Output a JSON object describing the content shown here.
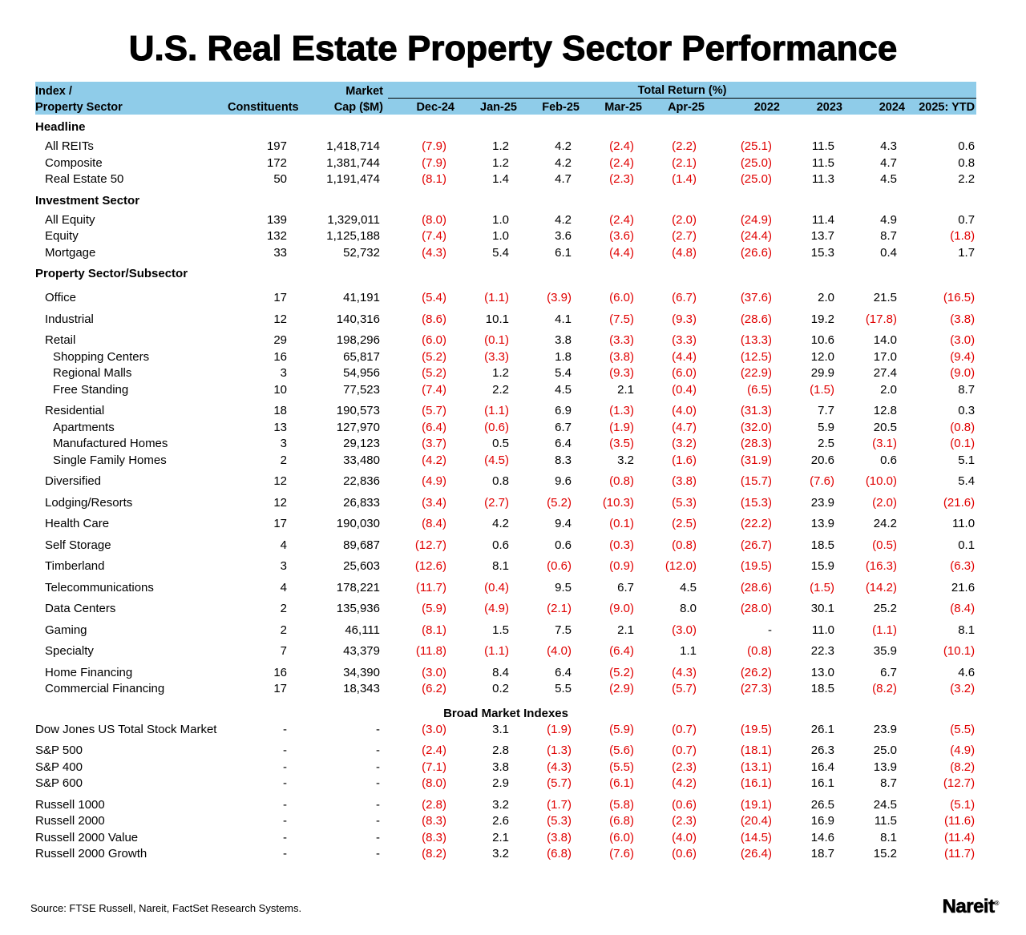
{
  "title": "U.S. Real Estate Property Sector Performance",
  "accent_color": "#8fcce9",
  "negative_color": "#e00000",
  "header": {
    "col1_line1": "Index /",
    "col1_line2": "Property Sector",
    "constituents": "Constituents",
    "mcap_line1": "Market",
    "mcap_line2": "Cap ($M)",
    "total_return": "Total Return (%)",
    "periods": [
      "Dec-24",
      "Jan-25",
      "Feb-25",
      "Mar-25",
      "Apr-25",
      "2022",
      "2023",
      "2024",
      "2025: YTD"
    ]
  },
  "sections": [
    {
      "label": "Headline",
      "rows": [
        {
          "name": "All REITs",
          "level": 1,
          "constituents": "197",
          "mcap": "1,418,714",
          "values": [
            "(7.9)",
            "1.2",
            "4.2",
            "(2.4)",
            "(2.2)",
            "(25.1)",
            "11.5",
            "4.3",
            "0.6"
          ]
        },
        {
          "name": "Composite",
          "level": 1,
          "constituents": "172",
          "mcap": "1,381,744",
          "values": [
            "(7.9)",
            "1.2",
            "4.2",
            "(2.4)",
            "(2.1)",
            "(25.0)",
            "11.5",
            "4.7",
            "0.8"
          ]
        },
        {
          "name": "Real Estate 50",
          "level": 1,
          "constituents": "50",
          "mcap": "1,191,474",
          "values": [
            "(8.1)",
            "1.4",
            "4.7",
            "(2.3)",
            "(1.4)",
            "(25.0)",
            "11.3",
            "4.5",
            "2.2"
          ]
        }
      ]
    },
    {
      "label": "Investment Sector",
      "rows": [
        {
          "name": "All Equity",
          "level": 1,
          "constituents": "139",
          "mcap": "1,329,011",
          "values": [
            "(8.0)",
            "1.0",
            "4.2",
            "(2.4)",
            "(2.0)",
            "(24.9)",
            "11.4",
            "4.9",
            "0.7"
          ]
        },
        {
          "name": "Equity",
          "level": 1,
          "constituents": "132",
          "mcap": "1,125,188",
          "values": [
            "(7.4)",
            "1.0",
            "3.6",
            "(3.6)",
            "(2.7)",
            "(24.4)",
            "13.7",
            "8.7",
            "(1.8)"
          ]
        },
        {
          "name": "Mortgage",
          "level": 1,
          "constituents": "33",
          "mcap": "52,732",
          "values": [
            "(4.3)",
            "5.4",
            "6.1",
            "(4.4)",
            "(4.8)",
            "(26.6)",
            "15.3",
            "0.4",
            "1.7"
          ]
        }
      ]
    },
    {
      "label": "Property Sector/Subsector",
      "rows": [
        {
          "name": "Office",
          "level": 1,
          "gap": true,
          "constituents": "17",
          "mcap": "41,191",
          "values": [
            "(5.4)",
            "(1.1)",
            "(3.9)",
            "(6.0)",
            "(6.7)",
            "(37.6)",
            "2.0",
            "21.5",
            "(16.5)"
          ]
        },
        {
          "name": "Industrial",
          "level": 1,
          "gap": true,
          "constituents": "12",
          "mcap": "140,316",
          "values": [
            "(8.6)",
            "10.1",
            "4.1",
            "(7.5)",
            "(9.3)",
            "(28.6)",
            "19.2",
            "(17.8)",
            "(3.8)"
          ]
        },
        {
          "name": "Retail",
          "level": 1,
          "gap": true,
          "constituents": "29",
          "mcap": "198,296",
          "values": [
            "(6.0)",
            "(0.1)",
            "3.8",
            "(3.3)",
            "(3.3)",
            "(13.3)",
            "10.6",
            "14.0",
            "(3.0)"
          ]
        },
        {
          "name": "Shopping Centers",
          "level": 2,
          "constituents": "16",
          "mcap": "65,817",
          "values": [
            "(5.2)",
            "(3.3)",
            "1.8",
            "(3.8)",
            "(4.4)",
            "(12.5)",
            "12.0",
            "17.0",
            "(9.4)"
          ]
        },
        {
          "name": "Regional Malls",
          "level": 2,
          "constituents": "3",
          "mcap": "54,956",
          "values": [
            "(5.2)",
            "1.2",
            "5.4",
            "(9.3)",
            "(6.0)",
            "(22.9)",
            "29.9",
            "27.4",
            "(9.0)"
          ]
        },
        {
          "name": "Free Standing",
          "level": 2,
          "constituents": "10",
          "mcap": "77,523",
          "values": [
            "(7.4)",
            "2.2",
            "4.5",
            "2.1",
            "(0.4)",
            "(6.5)",
            "(1.5)",
            "2.0",
            "8.7"
          ]
        },
        {
          "name": "Residential",
          "level": 1,
          "gap": true,
          "constituents": "18",
          "mcap": "190,573",
          "values": [
            "(5.7)",
            "(1.1)",
            "6.9",
            "(1.3)",
            "(4.0)",
            "(31.3)",
            "7.7",
            "12.8",
            "0.3"
          ]
        },
        {
          "name": "Apartments",
          "level": 2,
          "constituents": "13",
          "mcap": "127,970",
          "values": [
            "(6.4)",
            "(0.6)",
            "6.7",
            "(1.9)",
            "(4.7)",
            "(32.0)",
            "5.9",
            "20.5",
            "(0.8)"
          ]
        },
        {
          "name": "Manufactured Homes",
          "level": 2,
          "constituents": "3",
          "mcap": "29,123",
          "values": [
            "(3.7)",
            "0.5",
            "6.4",
            "(3.5)",
            "(3.2)",
            "(28.3)",
            "2.5",
            "(3.1)",
            "(0.1)"
          ]
        },
        {
          "name": "Single Family Homes",
          "level": 2,
          "constituents": "2",
          "mcap": "33,480",
          "values": [
            "(4.2)",
            "(4.5)",
            "8.3",
            "3.2",
            "(1.6)",
            "(31.9)",
            "20.6",
            "0.6",
            "5.1"
          ]
        },
        {
          "name": "Diversified",
          "level": 1,
          "gap": true,
          "constituents": "12",
          "mcap": "22,836",
          "values": [
            "(4.9)",
            "0.8",
            "9.6",
            "(0.8)",
            "(3.8)",
            "(15.7)",
            "(7.6)",
            "(10.0)",
            "5.4"
          ]
        },
        {
          "name": "Lodging/Resorts",
          "level": 1,
          "gap": true,
          "constituents": "12",
          "mcap": "26,833",
          "values": [
            "(3.4)",
            "(2.7)",
            "(5.2)",
            "(10.3)",
            "(5.3)",
            "(15.3)",
            "23.9",
            "(2.0)",
            "(21.6)"
          ]
        },
        {
          "name": "Health Care",
          "level": 1,
          "gap": true,
          "constituents": "17",
          "mcap": "190,030",
          "values": [
            "(8.4)",
            "4.2",
            "9.4",
            "(0.1)",
            "(2.5)",
            "(22.2)",
            "13.9",
            "24.2",
            "11.0"
          ]
        },
        {
          "name": "Self Storage",
          "level": 1,
          "gap": true,
          "constituents": "4",
          "mcap": "89,687",
          "values": [
            "(12.7)",
            "0.6",
            "0.6",
            "(0.3)",
            "(0.8)",
            "(26.7)",
            "18.5",
            "(0.5)",
            "0.1"
          ]
        },
        {
          "name": "Timberland",
          "level": 1,
          "gap": true,
          "constituents": "3",
          "mcap": "25,603",
          "values": [
            "(12.6)",
            "8.1",
            "(0.6)",
            "(0.9)",
            "(12.0)",
            "(19.5)",
            "15.9",
            "(16.3)",
            "(6.3)"
          ]
        },
        {
          "name": "Telecommunications",
          "level": 1,
          "gap": true,
          "constituents": "4",
          "mcap": "178,221",
          "values": [
            "(11.7)",
            "(0.4)",
            "9.5",
            "6.7",
            "4.5",
            "(28.6)",
            "(1.5)",
            "(14.2)",
            "21.6"
          ]
        },
        {
          "name": "Data Centers",
          "level": 1,
          "gap": true,
          "constituents": "2",
          "mcap": "135,936",
          "values": [
            "(5.9)",
            "(4.9)",
            "(2.1)",
            "(9.0)",
            "8.0",
            "(28.0)",
            "30.1",
            "25.2",
            "(8.4)"
          ]
        },
        {
          "name": "Gaming",
          "level": 1,
          "gap": true,
          "constituents": "2",
          "mcap": "46,111",
          "values": [
            "(8.1)",
            "1.5",
            "7.5",
            "2.1",
            "(3.0)",
            "-",
            "11.0",
            "(1.1)",
            "8.1"
          ]
        },
        {
          "name": "Specialty",
          "level": 1,
          "gap": true,
          "constituents": "7",
          "mcap": "43,379",
          "values": [
            "(11.8)",
            "(1.1)",
            "(4.0)",
            "(6.4)",
            "1.1",
            "(0.8)",
            "22.3",
            "35.9",
            "(10.1)"
          ]
        },
        {
          "name": "Home Financing",
          "level": 1,
          "gap": true,
          "constituents": "16",
          "mcap": "34,390",
          "values": [
            "(3.0)",
            "8.4",
            "6.4",
            "(5.2)",
            "(4.3)",
            "(26.2)",
            "13.0",
            "6.7",
            "4.6"
          ]
        },
        {
          "name": "Commercial Financing",
          "level": 1,
          "constituents": "17",
          "mcap": "18,343",
          "values": [
            "(6.2)",
            "0.2",
            "5.5",
            "(2.9)",
            "(5.7)",
            "(27.3)",
            "18.5",
            "(8.2)",
            "(3.2)"
          ]
        }
      ]
    }
  ],
  "broad_market": {
    "label": "Broad Market Indexes",
    "rows": [
      {
        "name": "Dow Jones US Total Stock Market",
        "constituents": "-",
        "mcap": "-",
        "values": [
          "(3.0)",
          "3.1",
          "(1.9)",
          "(5.9)",
          "(0.7)",
          "(19.5)",
          "26.1",
          "23.9",
          "(5.5)"
        ]
      },
      {
        "name": "S&P 500",
        "gap": true,
        "constituents": "-",
        "mcap": "-",
        "values": [
          "(2.4)",
          "2.8",
          "(1.3)",
          "(5.6)",
          "(0.7)",
          "(18.1)",
          "26.3",
          "25.0",
          "(4.9)"
        ]
      },
      {
        "name": "S&P 400",
        "constituents": "-",
        "mcap": "-",
        "values": [
          "(7.1)",
          "3.8",
          "(4.3)",
          "(5.5)",
          "(2.3)",
          "(13.1)",
          "16.4",
          "13.9",
          "(8.2)"
        ]
      },
      {
        "name": "S&P 600",
        "constituents": "-",
        "mcap": "-",
        "values": [
          "(8.0)",
          "2.9",
          "(5.7)",
          "(6.1)",
          "(4.2)",
          "(16.1)",
          "16.1",
          "8.7",
          "(12.7)"
        ]
      },
      {
        "name": "Russell 1000",
        "gap": true,
        "constituents": "-",
        "mcap": "-",
        "values": [
          "(2.8)",
          "3.2",
          "(1.7)",
          "(5.8)",
          "(0.6)",
          "(19.1)",
          "26.5",
          "24.5",
          "(5.1)"
        ]
      },
      {
        "name": "Russell 2000",
        "constituents": "-",
        "mcap": "-",
        "values": [
          "(8.3)",
          "2.6",
          "(5.3)",
          "(6.8)",
          "(2.3)",
          "(20.4)",
          "16.9",
          "11.5",
          "(11.6)"
        ]
      },
      {
        "name": "Russell 2000 Value",
        "constituents": "-",
        "mcap": "-",
        "values": [
          "(8.3)",
          "2.1",
          "(3.8)",
          "(6.0)",
          "(4.0)",
          "(14.5)",
          "14.6",
          "8.1",
          "(11.4)"
        ]
      },
      {
        "name": "Russell 2000 Growth",
        "constituents": "-",
        "mcap": "-",
        "values": [
          "(8.2)",
          "3.2",
          "(6.8)",
          "(7.6)",
          "(0.6)",
          "(26.4)",
          "18.7",
          "15.2",
          "(11.7)"
        ]
      }
    ]
  },
  "source": "Source: FTSE Russell, Nareit, FactSet Research Systems.",
  "logo": {
    "text": "Nareit",
    "mark": "®"
  }
}
